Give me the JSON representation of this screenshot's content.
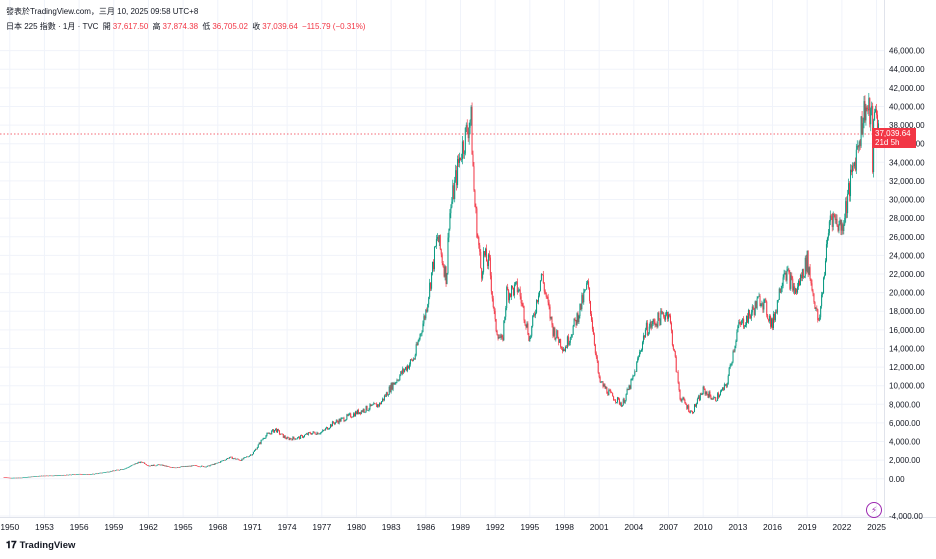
{
  "header": {
    "published_line": "發表於TradingView.com，三月 10, 2025 09:58 UTC+8",
    "symbol_line": "日本 225 指數 · 1月 · TVC",
    "ohlc": {
      "open_label": "開",
      "open": "37,617.50",
      "high_label": "高",
      "high": "37,874.38",
      "low_label": "低",
      "low": "36,705.02",
      "close_label": "收",
      "close": "37,039.64",
      "change": "−115.79 (−0.31%)"
    }
  },
  "price_tag": {
    "value": "37,039.64",
    "countdown": "21d 5h",
    "color": "#f23645"
  },
  "branding": {
    "name": "TradingView",
    "logo_glyph": "𝟏𝟕"
  },
  "icons": {
    "alert": "lightning-icon"
  },
  "colors": {
    "up": "#089981",
    "down": "#f23645",
    "last_price_line": "#f23645"
  },
  "chart_data": {
    "type": "candlestick",
    "xlabel": "",
    "ylabel": "",
    "ylim": [
      -4000,
      48000
    ],
    "y_ticks": [
      "-4,000.00",
      "0.00",
      "2,000.00",
      "4,000.00",
      "6,000.00",
      "8,000.00",
      "10,000.00",
      "12,000.00",
      "14,000.00",
      "16,000.00",
      "18,000.00",
      "20,000.00",
      "22,000.00",
      "24,000.00",
      "26,000.00",
      "28,000.00",
      "30,000.00",
      "32,000.00",
      "34,000.00",
      "36,000.00",
      "38,000.00",
      "40,000.00",
      "42,000.00",
      "44,000.00",
      "46,000.00"
    ],
    "x_ticks": [
      "1950",
      "1953",
      "1956",
      "1959",
      "1962",
      "1965",
      "1968",
      "1971",
      "1974",
      "1977",
      "1980",
      "1983",
      "1986",
      "1989",
      "1992",
      "1995",
      "1998",
      "2001",
      "2004",
      "2007",
      "2010",
      "2013",
      "2016",
      "2019",
      "2022",
      "2025"
    ],
    "xlim": [
      1949.5,
      2025.3
    ],
    "grid": true,
    "last_price": 37039.64,
    "series": [
      {
        "values": [
          [
            1949.5,
            176
          ],
          [
            1950,
            100
          ],
          [
            1951,
            120
          ],
          [
            1952,
            250
          ],
          [
            1953,
            340
          ],
          [
            1954,
            350
          ],
          [
            1955,
            420
          ],
          [
            1956,
            500
          ],
          [
            1957,
            480
          ],
          [
            1958,
            650
          ],
          [
            1959,
            870
          ],
          [
            1960,
            1100
          ],
          [
            1961,
            1700
          ],
          [
            1961.5,
            1800
          ],
          [
            1962,
            1400
          ],
          [
            1963,
            1500
          ],
          [
            1964,
            1200
          ],
          [
            1965,
            1300
          ],
          [
            1966,
            1400
          ],
          [
            1967,
            1300
          ],
          [
            1968,
            1700
          ],
          [
            1969,
            2300
          ],
          [
            1970,
            2000
          ],
          [
            1971,
            2700
          ],
          [
            1972,
            4500
          ],
          [
            1973,
            5300
          ],
          [
            1973.5,
            4700
          ],
          [
            1974,
            4300
          ],
          [
            1975,
            4400
          ],
          [
            1976,
            4900
          ],
          [
            1977,
            5000
          ],
          [
            1978,
            6000
          ],
          [
            1979,
            6500
          ],
          [
            1980,
            7100
          ],
          [
            1981,
            7600
          ],
          [
            1982,
            8000
          ],
          [
            1983,
            9900
          ],
          [
            1984,
            11500
          ],
          [
            1985,
            13000
          ],
          [
            1986,
            18000
          ],
          [
            1987,
            26000
          ],
          [
            1987.8,
            21500
          ],
          [
            1988,
            28000
          ],
          [
            1989,
            35000
          ],
          [
            1989.9,
            38900
          ],
          [
            1990.2,
            30000
          ],
          [
            1990.8,
            22000
          ],
          [
            1991,
            24000
          ],
          [
            1991.5,
            23000
          ],
          [
            1992,
            16500
          ],
          [
            1992.6,
            14500
          ],
          [
            1993,
            20000
          ],
          [
            1994,
            20500
          ],
          [
            1995,
            15000
          ],
          [
            1996,
            22000
          ],
          [
            1997,
            16000
          ],
          [
            1998,
            14000
          ],
          [
            1999,
            17000
          ],
          [
            2000,
            20800
          ],
          [
            2001,
            10500
          ],
          [
            2002,
            9000
          ],
          [
            2003,
            8000
          ],
          [
            2004,
            11000
          ],
          [
            2005,
            16000
          ],
          [
            2006,
            17000
          ],
          [
            2007,
            18000
          ],
          [
            2008,
            8800
          ],
          [
            2009,
            7100
          ],
          [
            2010,
            9500
          ],
          [
            2011,
            8500
          ],
          [
            2012,
            10000
          ],
          [
            2013,
            16200
          ],
          [
            2014,
            17500
          ],
          [
            2015,
            19500
          ],
          [
            2016,
            16500
          ],
          [
            2017,
            22700
          ],
          [
            2018,
            20000
          ],
          [
            2019,
            23500
          ],
          [
            2020,
            16500
          ],
          [
            2021,
            28500
          ],
          [
            2022,
            27000
          ],
          [
            2023,
            33500
          ],
          [
            2024,
            40000
          ],
          [
            2024.6,
            38600
          ],
          [
            2024.6,
            31500
          ],
          [
            2024.8,
            39000
          ],
          [
            2025,
            39800
          ],
          [
            2025.2,
            37039.64
          ]
        ]
      }
    ]
  }
}
